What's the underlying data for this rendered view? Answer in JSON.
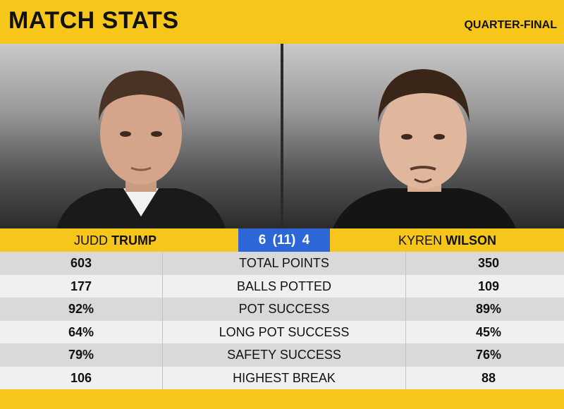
{
  "header": {
    "title": "MATCH STATS",
    "round": "QUARTER-FINAL"
  },
  "players": {
    "left": {
      "first": "JUDD",
      "last": "TRUMP"
    },
    "right": {
      "first": "KYREN",
      "last": "WILSON"
    }
  },
  "score": {
    "text": "6  (11)  4",
    "left_frames": 6,
    "best_of": 11,
    "right_frames": 4
  },
  "stats": [
    {
      "label": "TOTAL POINTS",
      "left": "603",
      "right": "350"
    },
    {
      "label": "BALLS POTTED",
      "left": "177",
      "right": "109"
    },
    {
      "label": "POT SUCCESS",
      "left": "92%",
      "right": "89%"
    },
    {
      "label": "LONG POT SUCCESS",
      "left": "64%",
      "right": "45%"
    },
    {
      "label": "SAFETY SUCCESS",
      "left": "79%",
      "right": "76%"
    },
    {
      "label": "HIGHEST BREAK",
      "left": "106",
      "right": "88"
    }
  ],
  "colors": {
    "accent": "#f6c61a",
    "score_bg": "#2d66d6"
  }
}
